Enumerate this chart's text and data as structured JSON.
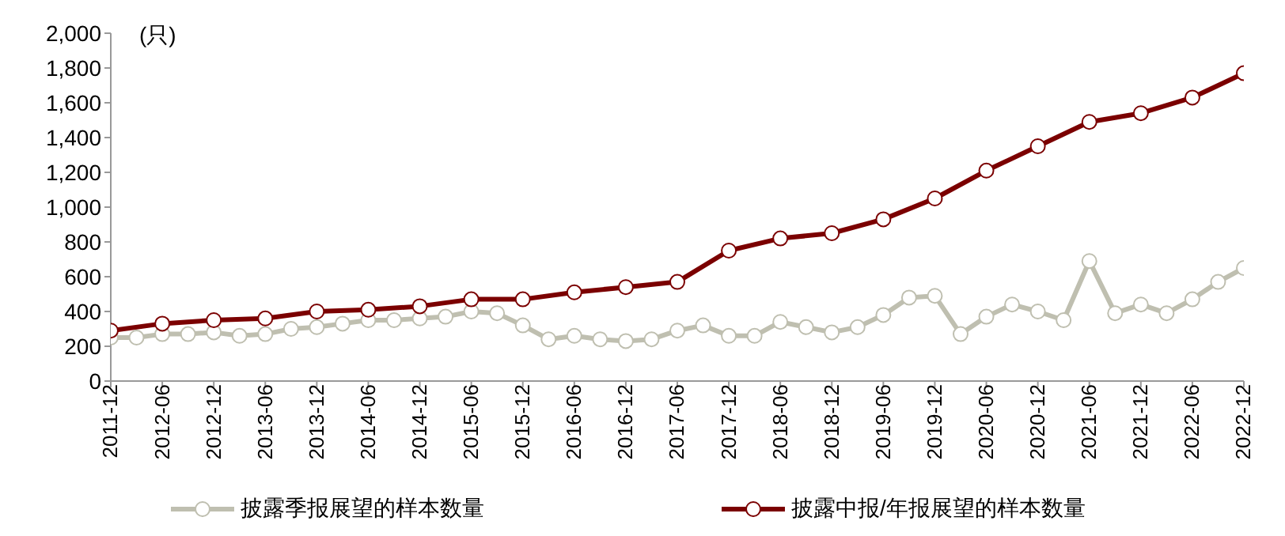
{
  "chart_data": {
    "type": "line",
    "ylabel": "(只)",
    "categories": [
      "2011-12",
      null,
      "2012-06",
      null,
      "2012-12",
      null,
      "2013-06",
      null,
      "2013-12",
      null,
      "2014-06",
      null,
      "2014-12",
      null,
      "2015-06",
      null,
      "2015-12",
      null,
      "2016-06",
      null,
      "2016-12",
      null,
      "2017-06",
      null,
      "2017-12",
      null,
      "2018-06",
      null,
      "2018-12",
      null,
      "2019-06",
      null,
      "2019-12",
      null,
      "2020-06",
      null,
      "2020-12",
      null,
      "2021-06",
      null,
      "2021-12",
      null,
      "2022-06",
      null,
      "2022-12"
    ],
    "series": [
      {
        "name": "披露季报展望的样本数量",
        "color": "#bfbfb0",
        "values": [
          250,
          250,
          270,
          270,
          280,
          260,
          270,
          300,
          310,
          330,
          350,
          350,
          360,
          370,
          400,
          390,
          320,
          240,
          260,
          240,
          230,
          240,
          290,
          320,
          260,
          260,
          340,
          310,
          280,
          310,
          380,
          480,
          490,
          270,
          370,
          440,
          400,
          350,
          690,
          390,
          440,
          390,
          470,
          570,
          650
        ]
      },
      {
        "name": "披露中报/年报展望的样本数量",
        "color": "#7b0000",
        "values": [
          290,
          null,
          330,
          null,
          350,
          null,
          360,
          null,
          400,
          null,
          410,
          null,
          430,
          null,
          470,
          null,
          470,
          null,
          510,
          null,
          540,
          null,
          570,
          null,
          750,
          null,
          820,
          null,
          850,
          null,
          930,
          null,
          1050,
          null,
          1210,
          null,
          1350,
          null,
          1490,
          null,
          1540,
          null,
          1630,
          null,
          1770
        ]
      }
    ],
    "ylim": [
      0,
      2000
    ],
    "yticks": [
      0,
      200,
      400,
      600,
      800,
      {
        "value": 1000,
        "label": "1,000"
      },
      {
        "value": 1200,
        "label": "1,200"
      },
      {
        "value": 1400,
        "label": "1,400"
      },
      {
        "value": 1600,
        "label": "1,600"
      },
      {
        "value": 1800,
        "label": "1,800"
      },
      {
        "value": 2000,
        "label": "2,000"
      }
    ],
    "grid": false,
    "legend": "bottom",
    "marker": "circle",
    "line_style": "solid"
  }
}
